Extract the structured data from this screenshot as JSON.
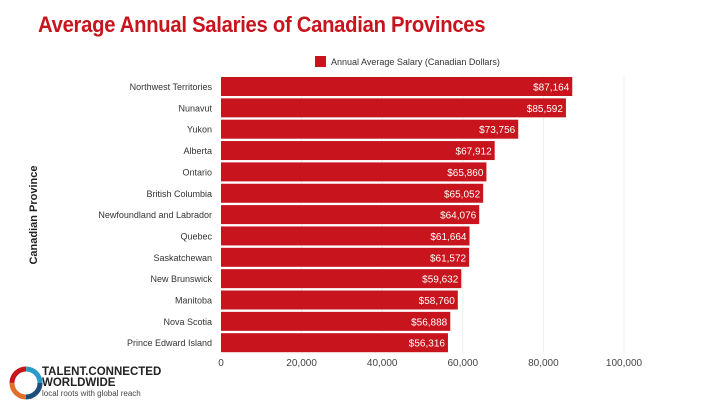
{
  "chart_data": {
    "type": "bar",
    "orientation": "horizontal",
    "title": "Average Annual Salaries of Canadian Provinces",
    "xlabel": "",
    "ylabel": "Canadian Province",
    "xlim": [
      0,
      100000
    ],
    "xticks": [
      "0",
      "20,000",
      "40,000",
      "60,000",
      "80,000",
      "100,000"
    ],
    "grid": true,
    "legend_position": "top",
    "bar_color": "#c8141c",
    "categories": [
      "Northwest Territories",
      "Nunavut",
      "Yukon",
      "Alberta",
      "Ontario",
      "British Columbia",
      "Newfoundland and Labrador",
      "Quebec",
      "Saskatchewan",
      "New Brunswick",
      "Manitoba",
      "Nova Scotia",
      "Prince Edward Island"
    ],
    "series": [
      {
        "name": "Annual Average Salary (Canadian Dollars)",
        "values": [
          87164,
          85592,
          73756,
          67912,
          65860,
          65052,
          64076,
          61664,
          61572,
          59632,
          58760,
          56888,
          56316
        ],
        "labels": [
          "$87,164",
          "$85,592",
          "$73,756",
          "$67,912",
          "$65,860",
          "$65,052",
          "$64,076",
          "$61,664",
          "$61,572",
          "$59,632",
          "$58,760",
          "$56,888",
          "$56,316"
        ]
      }
    ]
  },
  "branding": {
    "line1": "TALENT.CONNECTED",
    "line2": "WORLDWIDE",
    "tagline": "local roots with global reach"
  }
}
